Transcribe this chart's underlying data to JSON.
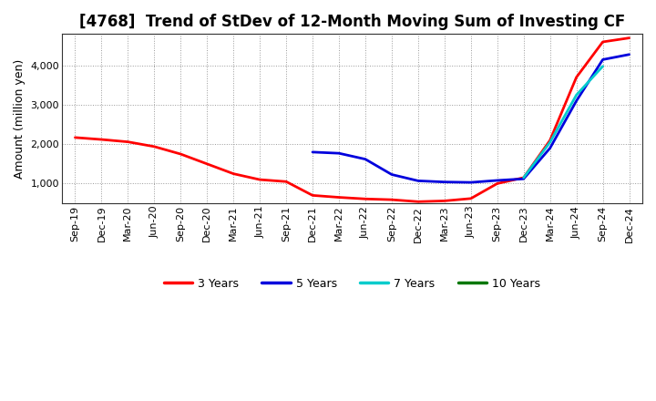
{
  "title": "[4768]  Trend of StDev of 12-Month Moving Sum of Investing CF",
  "ylabel": "Amount (million yen)",
  "background_color": "#ffffff",
  "plot_bg_color": "#ffffff",
  "grid_color": "#999999",
  "x_labels": [
    "Sep-19",
    "Dec-19",
    "Mar-20",
    "Jun-20",
    "Sep-20",
    "Dec-20",
    "Mar-21",
    "Jun-21",
    "Sep-21",
    "Dec-21",
    "Mar-22",
    "Jun-22",
    "Sep-22",
    "Dec-22",
    "Mar-23",
    "Jun-23",
    "Sep-23",
    "Dec-23",
    "Mar-24",
    "Jun-24",
    "Sep-24",
    "Dec-24"
  ],
  "series": {
    "3 Years": {
      "color": "#ff0000",
      "data": [
        2170,
        2120,
        2060,
        1940,
        1750,
        1500,
        1250,
        1100,
        1050,
        700,
        650,
        610,
        590,
        540,
        560,
        620,
        1000,
        1150,
        2100,
        3700,
        4600,
        4700
      ]
    },
    "5 Years": {
      "color": "#0000dd",
      "data": [
        null,
        null,
        null,
        null,
        null,
        null,
        null,
        null,
        null,
        1800,
        1770,
        1620,
        1230,
        1070,
        1040,
        1030,
        1080,
        1120,
        1900,
        3100,
        4150,
        4280
      ]
    },
    "7 Years": {
      "color": "#00cccc",
      "data": [
        null,
        null,
        null,
        null,
        null,
        null,
        null,
        null,
        null,
        null,
        null,
        null,
        null,
        null,
        null,
        null,
        null,
        1150,
        2050,
        3250,
        3980,
        null
      ]
    },
    "10 Years": {
      "color": "#007700",
      "data": [
        null,
        null,
        null,
        null,
        null,
        null,
        null,
        null,
        null,
        null,
        null,
        null,
        null,
        null,
        null,
        null,
        null,
        null,
        null,
        null,
        null,
        null
      ]
    }
  },
  "ylim": [
    500,
    4800
  ],
  "yticks": [
    1000,
    2000,
    3000,
    4000
  ],
  "legend_ncol": 4,
  "title_fontsize": 12,
  "axis_fontsize": 9,
  "tick_fontsize": 8
}
